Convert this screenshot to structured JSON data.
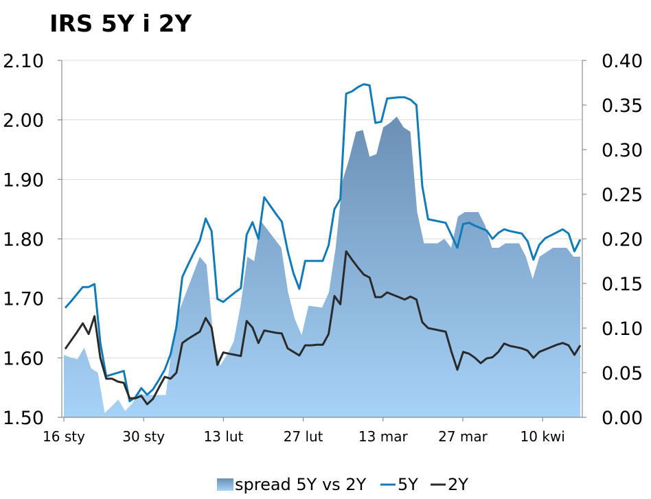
{
  "chart_data": {
    "type": "line",
    "title": "IRS 5Y i 2Y",
    "x_labels": [
      "16 sty",
      "30 sty",
      "13 lut",
      "27 lut",
      "13 mar",
      "27 mar",
      "10 kwi"
    ],
    "y_left": {
      "min": 1.5,
      "max": 2.1,
      "ticks": [
        "1.50",
        "1.60",
        "1.70",
        "1.80",
        "1.90",
        "2.00",
        "2.10"
      ]
    },
    "y_right": {
      "min": 0.0,
      "max": 0.4,
      "ticks": [
        "0.00",
        "0.05",
        "0.10",
        "0.15",
        "0.20",
        "0.25",
        "0.30",
        "0.35",
        "0.40"
      ]
    },
    "series": [
      {
        "name": "spread 5Y vs 2Y",
        "type": "area",
        "axis": "right",
        "color_top": "#6b8fb5",
        "color_bottom": "#a7d2f7",
        "values": [
          0.07,
          0.067,
          0.065,
          0.078,
          0.055,
          0.05,
          0.005,
          0.012,
          0.02,
          0.007,
          0.015,
          0.027,
          0.025,
          0.025,
          0.025,
          0.025,
          0.085,
          0.12,
          0.14,
          0.16,
          0.18,
          0.171,
          0.09,
          0.058,
          0.07,
          0.085,
          0.125,
          0.18,
          0.175,
          0.22,
          0.21,
          0.2,
          0.19,
          0.14,
          0.11,
          0.092,
          0.125,
          0.124,
          0.123,
          0.14,
          0.19,
          0.265,
          0.29,
          0.32,
          0.322,
          0.292,
          0.295,
          0.325,
          0.33,
          0.337,
          0.325,
          0.32,
          0.23,
          0.195,
          0.195,
          0.195,
          0.2,
          0.19,
          0.225,
          0.23,
          0.23,
          0.23,
          0.215,
          0.19,
          0.19,
          0.195,
          0.195,
          0.195,
          0.18,
          0.155,
          0.18,
          0.185,
          0.19,
          0.19,
          0.19,
          0.18,
          0.18
        ]
      },
      {
        "name": "5Y",
        "type": "line",
        "axis": "left",
        "color": "#0f7bb8",
        "values": [
          1.684,
          1.695,
          1.707,
          1.719,
          1.719,
          1.724,
          1.625,
          1.569,
          1.572,
          1.575,
          1.578,
          1.527,
          1.534,
          1.549,
          1.538,
          1.547,
          1.563,
          1.58,
          1.606,
          1.652,
          1.736,
          1.757,
          1.777,
          1.797,
          1.834,
          1.813,
          1.699,
          1.694,
          1.702,
          1.71,
          1.717,
          1.807,
          1.828,
          1.8,
          1.87,
          1.856,
          1.842,
          1.829,
          1.78,
          1.742,
          1.716,
          1.763,
          1.763,
          1.763,
          1.763,
          1.789,
          1.85,
          1.867,
          2.044,
          2.048,
          2.055,
          2.06,
          2.058,
          1.995,
          1.997,
          2.036,
          2.037,
          2.038,
          2.038,
          2.034,
          2.025,
          1.889,
          1.833,
          1.831,
          1.829,
          1.827,
          1.806,
          1.785,
          1.825,
          1.827,
          1.822,
          1.818,
          1.814,
          1.8,
          1.81,
          1.816,
          1.813,
          1.811,
          1.809,
          1.796,
          1.765,
          1.79,
          1.801,
          1.806,
          1.811,
          1.816,
          1.809,
          1.779,
          1.799
        ]
      },
      {
        "name": "2Y",
        "type": "line",
        "axis": "left",
        "color": "#2a2a2a",
        "values": [
          1.615,
          1.629,
          1.643,
          1.658,
          1.64,
          1.67,
          1.6,
          1.565,
          1.565,
          1.56,
          1.558,
          1.532,
          1.532,
          1.536,
          1.522,
          1.531,
          1.55,
          1.568,
          1.565,
          1.575,
          1.625,
          1.632,
          1.638,
          1.644,
          1.667,
          1.651,
          1.588,
          1.609,
          1.607,
          1.605,
          1.603,
          1.662,
          1.651,
          1.625,
          1.646,
          1.644,
          1.642,
          1.641,
          1.616,
          1.61,
          1.604,
          1.621,
          1.621,
          1.622,
          1.622,
          1.64,
          1.704,
          1.69,
          1.779,
          1.765,
          1.752,
          1.74,
          1.735,
          1.702,
          1.702,
          1.71,
          1.706,
          1.702,
          1.698,
          1.703,
          1.698,
          1.66,
          1.65,
          1.648,
          1.646,
          1.644,
          1.61,
          1.58,
          1.61,
          1.607,
          1.6,
          1.591,
          1.599,
          1.601,
          1.61,
          1.624,
          1.62,
          1.618,
          1.616,
          1.612,
          1.6,
          1.61,
          1.614,
          1.618,
          1.622,
          1.625,
          1.621,
          1.605,
          1.621
        ]
      }
    ],
    "legend": {
      "position": "bottom",
      "items": [
        "spread 5Y vs 2Y",
        "5Y",
        "2Y"
      ]
    }
  }
}
